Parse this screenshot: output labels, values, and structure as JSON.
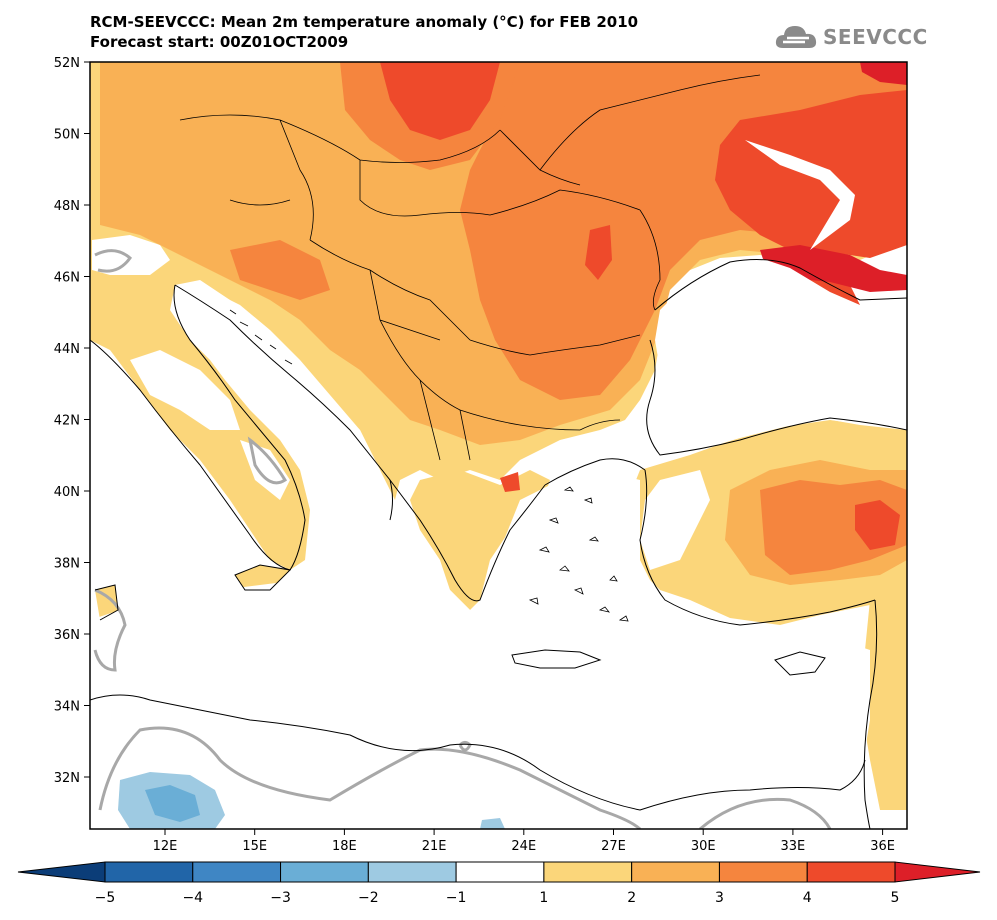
{
  "header": {
    "title_line1": "RCM-SEEVCCC: Mean 2m temperature anomaly (°C) for FEB 2010",
    "title_line2": "Forecast start: 00Z01OCT2009",
    "logo_text": "SEEVCCC"
  },
  "map": {
    "lat_labels": [
      "52N",
      "50N",
      "48N",
      "46N",
      "44N",
      "42N",
      "40N",
      "38N",
      "36N",
      "34N",
      "32N"
    ],
    "lon_labels": [
      "12E",
      "15E",
      "18E",
      "21E",
      "24E",
      "27E",
      "30E",
      "33E",
      "36E"
    ],
    "colors": {
      "lv1": "#fbd67a",
      "lv2": "#f9b155",
      "lv3": "#f5853e",
      "lv4": "#ee4a2b",
      "lv5": "#dd1f28",
      "neg1": "#9ecae2",
      "neg2": "#6aaed6",
      "neg3": "#3d86c2",
      "neg4": "#1c5a9a",
      "coast": "#000000",
      "zero_contour": "#a8a8a8"
    }
  },
  "colorbar": {
    "labels": [
      "−5",
      "−4",
      "−3",
      "−2",
      "−1",
      "1",
      "2",
      "3",
      "4",
      "5"
    ],
    "colors": [
      "#0b3d78",
      "#2165a8",
      "#3f86c4",
      "#6aaed6",
      "#9ecae2",
      "#ffffff",
      "#fbd67a",
      "#f9b155",
      "#f5853e",
      "#ee4a2b",
      "#dd1f28"
    ]
  }
}
